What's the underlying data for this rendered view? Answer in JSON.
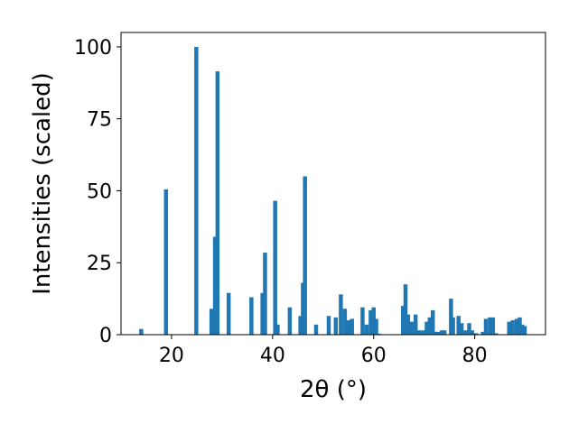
{
  "chart_data": {
    "type": "bar",
    "title": "",
    "xlabel": "2θ (°)",
    "ylabel": "Intensities (scaled)",
    "xlim": [
      10,
      94
    ],
    "ylim": [
      0,
      105
    ],
    "xticks": [
      20,
      40,
      60,
      80
    ],
    "yticks": [
      0,
      25,
      50,
      75,
      100
    ],
    "bar_color": "#1f77b4",
    "bar_width_deg": 0.8,
    "grid": false,
    "legend": "none",
    "x": [
      14.0,
      18.9,
      24.9,
      27.9,
      28.6,
      29.1,
      31.3,
      35.8,
      38.0,
      38.5,
      40.5,
      41.0,
      43.4,
      45.5,
      46.0,
      46.4,
      48.6,
      51.1,
      52.5,
      53.5,
      54.3,
      55.0,
      55.7,
      57.8,
      58.6,
      59.4,
      60.0,
      60.5,
      61.1,
      65.8,
      66.3,
      66.8,
      67.5,
      68.3,
      69.0,
      69.8,
      70.5,
      71.1,
      71.7,
      72.3,
      73.0,
      73.5,
      74.0,
      75.3,
      75.7,
      76.8,
      77.4,
      78.2,
      78.9,
      79.5,
      80.3,
      81.6,
      82.2,
      83.0,
      83.6,
      84.2,
      86.8,
      87.5,
      88.3,
      88.9,
      89.4,
      89.9
    ],
    "values": [
      2,
      50.5,
      100,
      9,
      34,
      91.5,
      14.5,
      13,
      14.5,
      28.5,
      46.5,
      3.5,
      9.5,
      6.5,
      18,
      55,
      3.5,
      6.5,
      6,
      14,
      9,
      5,
      5.5,
      9.5,
      3.5,
      8.5,
      9.5,
      5.5,
      0.3,
      10,
      17.5,
      7,
      4.5,
      7,
      1.5,
      1.5,
      4.5,
      6,
      8.5,
      1,
      1,
      1.5,
      1.5,
      12.5,
      6,
      6.5,
      4,
      1.5,
      4,
      1.5,
      0.5,
      1,
      5.5,
      6,
      6,
      0.5,
      4.5,
      5,
      5.5,
      6,
      3.5,
      3
    ]
  }
}
